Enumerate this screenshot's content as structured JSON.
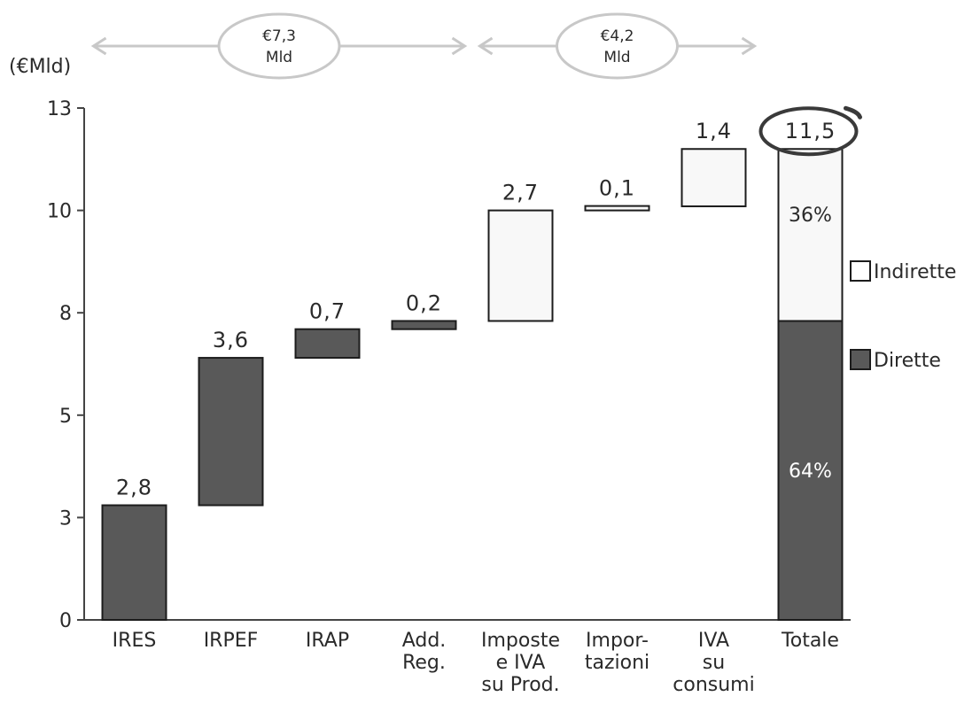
{
  "chart_data": {
    "type": "bar",
    "subtype": "waterfall",
    "unit_label": "(€Mld)",
    "yticks": [
      "0",
      "3",
      "5",
      "8",
      "10",
      "13"
    ],
    "ylim": [
      0,
      12.5
    ],
    "categories": [
      {
        "lines": [
          "IRES"
        ]
      },
      {
        "lines": [
          "IRPEF"
        ]
      },
      {
        "lines": [
          "IRAP"
        ]
      },
      {
        "lines": [
          "Add.",
          "Reg."
        ]
      },
      {
        "lines": [
          "Imposte",
          "e IVA",
          "su Prod."
        ]
      },
      {
        "lines": [
          "Impor-",
          "tazioni"
        ]
      },
      {
        "lines": [
          "IVA",
          "su",
          "consumi"
        ]
      },
      {
        "lines": [
          "Totale"
        ]
      }
    ],
    "bars": [
      {
        "label": "2,8",
        "value": 2.8,
        "start": 0,
        "end": 2.8,
        "kind": "direct"
      },
      {
        "label": "3,6",
        "value": 3.6,
        "start": 2.8,
        "end": 6.4,
        "kind": "direct"
      },
      {
        "label": "0,7",
        "value": 0.7,
        "start": 6.4,
        "end": 7.1,
        "kind": "direct"
      },
      {
        "label": "0,2",
        "value": 0.2,
        "start": 7.1,
        "end": 7.3,
        "kind": "direct"
      },
      {
        "label": "2,7",
        "value": 2.7,
        "start": 7.3,
        "end": 10.0,
        "kind": "indirect"
      },
      {
        "label": "0,1",
        "value": 0.1,
        "start": 10.0,
        "end": 10.1,
        "kind": "indirect"
      },
      {
        "label": "1,4",
        "value": 1.4,
        "start": 10.1,
        "end": 11.5,
        "kind": "indirect"
      }
    ],
    "total": {
      "label": "11,5",
      "value": 11.5,
      "direct_value": 7.3,
      "indirect_value": 4.2,
      "direct_share": "64%",
      "indirect_share": "36%"
    },
    "brackets": [
      {
        "lines": [
          "€7,3",
          "Mld"
        ],
        "from_category": 0,
        "to_category": 3
      },
      {
        "lines": [
          "€4,2",
          "Mld"
        ],
        "from_category": 4,
        "to_category": 6
      }
    ],
    "legend": [
      {
        "label": "Indirette",
        "kind": "indirect"
      },
      {
        "label": "Dirette",
        "kind": "direct"
      }
    ],
    "colors": {
      "direct": "#595959",
      "indirect": "#f8f8f8",
      "stroke": "#1c1c1c",
      "axis": "#444444",
      "bracket": "#c8c8c8"
    }
  }
}
